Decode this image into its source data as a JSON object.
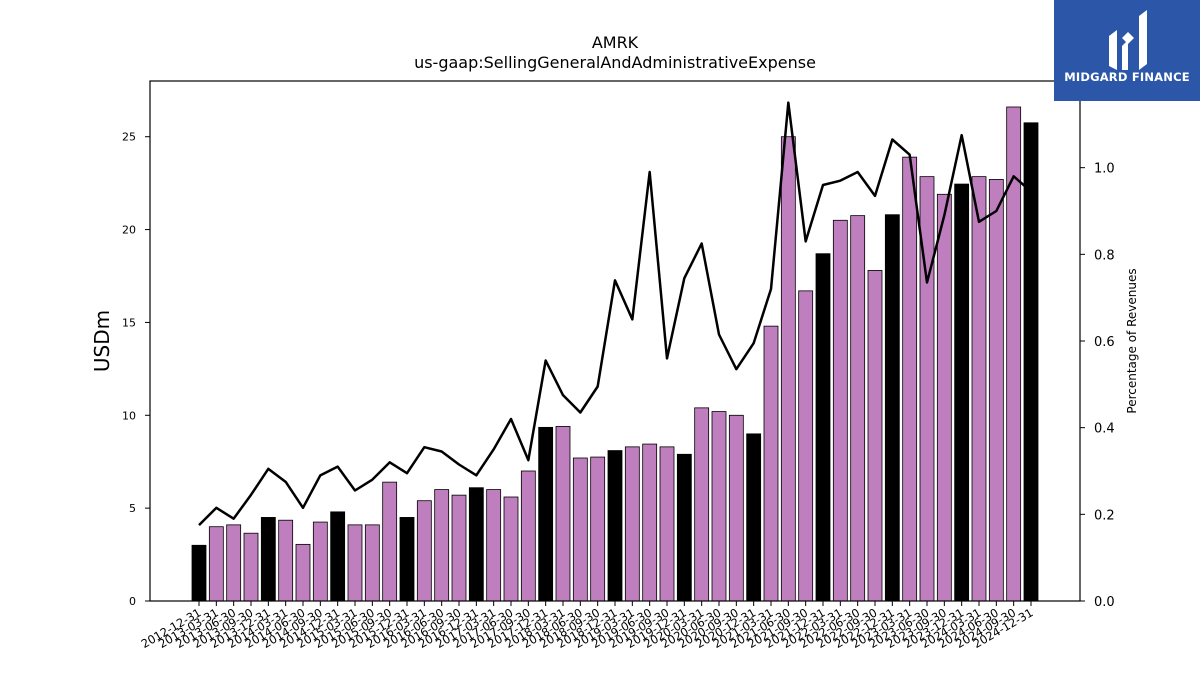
{
  "chart_data": {
    "type": "bar",
    "title": "AMRK",
    "subtitle": "us-gaap:SellingGeneralAndAdministrativeExpense",
    "ylabel": "USDm",
    "y2label": "Percentage of Revenues",
    "ylim": [
      0,
      28
    ],
    "y2lim": [
      0,
      1.2
    ],
    "yticks": [
      0,
      5,
      10,
      15,
      20,
      25
    ],
    "y2ticks": [
      "0.0",
      "0.2",
      "0.4",
      "0.6",
      "0.8",
      "1.0"
    ],
    "colors": {
      "quarter": "#bf7fbf",
      "fiscal_year_end": "#000000",
      "line": "#000000"
    },
    "categories": [
      "2012-12-31",
      "2013-03-31",
      "2013-06-30",
      "2013-09-30",
      "2013-12-31",
      "2014-03-31",
      "2014-06-30",
      "2014-09-30",
      "2014-12-31",
      "2015-03-31",
      "2015-06-30",
      "2015-09-30",
      "2015-12-31",
      "2016-03-31",
      "2016-06-30",
      "2016-09-30",
      "2016-12-31",
      "2017-03-31",
      "2017-06-30",
      "2017-09-30",
      "2017-12-31",
      "2018-03-31",
      "2018-06-30",
      "2018-09-30",
      "2018-12-31",
      "2019-03-31",
      "2019-06-30",
      "2019-09-30",
      "2019-12-31",
      "2020-03-31",
      "2020-06-30",
      "2020-09-30",
      "2020-12-31",
      "2021-03-31",
      "2021-06-30",
      "2021-09-30",
      "2021-12-31",
      "2022-03-31",
      "2022-06-30",
      "2022-09-30",
      "2022-12-31",
      "2023-03-31",
      "2023-06-30",
      "2023-09-30",
      "2023-12-31",
      "2024-03-31",
      "2024-06-30",
      "2024-09-30",
      "2024-12-31"
    ],
    "series": [
      {
        "kind": "bar",
        "values": [
          3.0,
          4.0,
          4.1,
          3.65,
          4.5,
          4.35,
          3.05,
          4.25,
          4.8,
          4.1,
          4.1,
          6.4,
          4.5,
          5.4,
          6.0,
          5.7,
          6.1,
          6.0,
          5.6,
          7.0,
          9.35,
          9.4,
          7.7,
          7.75,
          8.1,
          8.3,
          8.45,
          8.3,
          7.9,
          10.4,
          10.2,
          10.0,
          9.0,
          14.8,
          25.0,
          16.7,
          18.7,
          20.5,
          20.75,
          17.8,
          20.8,
          23.9,
          22.85,
          21.9,
          22.45,
          22.85,
          22.7,
          26.6,
          25.75
        ],
        "fiscal_year_end": [
          true,
          false,
          false,
          false,
          true,
          false,
          false,
          false,
          true,
          false,
          false,
          false,
          true,
          false,
          false,
          false,
          true,
          false,
          false,
          false,
          true,
          false,
          false,
          false,
          true,
          false,
          false,
          false,
          true,
          false,
          false,
          false,
          true,
          false,
          false,
          false,
          true,
          false,
          false,
          false,
          true,
          false,
          false,
          false,
          true,
          false,
          false,
          false,
          true
        ]
      },
      {
        "kind": "line",
        "axis": "right",
        "values": [
          0.175,
          0.215,
          0.19,
          0.245,
          0.305,
          0.275,
          0.215,
          0.29,
          0.31,
          0.255,
          0.28,
          0.32,
          0.295,
          0.355,
          0.345,
          0.315,
          0.29,
          0.35,
          0.42,
          0.325,
          0.555,
          0.475,
          0.435,
          0.495,
          0.74,
          0.65,
          0.99,
          0.56,
          0.745,
          0.825,
          0.615,
          0.535,
          0.595,
          0.72,
          1.15,
          0.83,
          0.96,
          0.97,
          0.99,
          0.935,
          1.065,
          1.03,
          0.735,
          0.89,
          1.075,
          0.875,
          0.9,
          0.98,
          0.945
        ]
      }
    ]
  },
  "logo": {
    "text": "MIDGARD FINANCE"
  }
}
